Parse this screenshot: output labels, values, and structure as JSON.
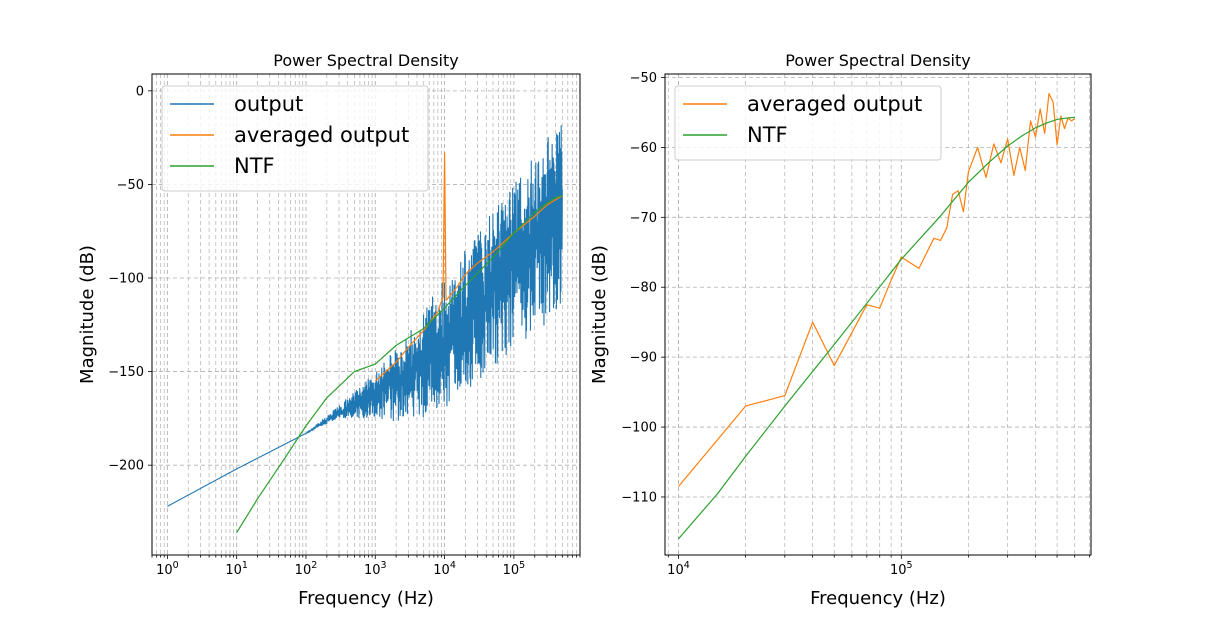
{
  "chart_data": [
    {
      "type": "line",
      "title": "Power Spectral Density",
      "xlabel": "Frequency (Hz)",
      "ylabel": "Magnitude (dB)",
      "xscale": "log",
      "xlim": [
        0.6,
        900000
      ],
      "ylim": [
        -248,
        9
      ],
      "yticks": [
        0,
        -50,
        -100,
        -150,
        -200
      ],
      "xticks": [
        1,
        10,
        100,
        1000,
        10000,
        100000
      ],
      "xtick_labels": [
        {
          "base": "10",
          "exp": "0"
        },
        {
          "base": "10",
          "exp": "1"
        },
        {
          "base": "10",
          "exp": "2"
        },
        {
          "base": "10",
          "exp": "3"
        },
        {
          "base": "10",
          "exp": "4"
        },
        {
          "base": "10",
          "exp": "5"
        }
      ],
      "grid": true,
      "legend_position": "top-left",
      "series": [
        {
          "name": "output",
          "color": "#1f77b4",
          "x": [
            1,
            10,
            100,
            300,
            1000,
            3000,
            10000,
            30000,
            100000,
            300000,
            500000
          ],
          "y": [
            -222,
            -202,
            -183,
            -172,
            -162,
            -150,
            -133,
            -115,
            -90,
            -70,
            -60
          ],
          "y_low": [
            -222,
            -202,
            -183,
            -175,
            -175,
            -178,
            -170,
            -155,
            -138,
            -125,
            -120
          ],
          "y_high": [
            -222,
            -202,
            -183,
            -168,
            -150,
            -130,
            -100,
            -75,
            -50,
            -25,
            -17
          ]
        },
        {
          "name": "averaged output",
          "color": "#ff7f0e",
          "x": [
            1000,
            2000,
            3000,
            5000,
            8000,
            9500,
            10000,
            10500,
            15000,
            20000,
            30000,
            50000,
            100000,
            200000,
            300000,
            500000
          ],
          "y": [
            -155,
            -145,
            -137,
            -128,
            -118,
            -110,
            -33,
            -112,
            -105,
            -98,
            -92,
            -86,
            -76,
            -67,
            -61,
            -56
          ]
        },
        {
          "name": "NTF",
          "color": "#2ca02c",
          "x": [
            10,
            20,
            50,
            100,
            200,
            500,
            1000,
            2000,
            5000,
            10000,
            20000,
            50000,
            100000,
            200000,
            300000,
            400000,
            500000
          ],
          "y": [
            -236,
            -218,
            -196,
            -179,
            -164,
            -150,
            -146,
            -136,
            -127,
            -116,
            -104,
            -89,
            -76,
            -65,
            -60,
            -57,
            -56
          ]
        }
      ]
    },
    {
      "type": "line",
      "title": "Power Spectral Density",
      "xlabel": "Frequency (Hz)",
      "ylabel": "Magnitude (dB)",
      "xscale": "log",
      "xlim": [
        8700,
        710000
      ],
      "ylim": [
        -118.3,
        -49.5
      ],
      "yticks": [
        -50,
        -60,
        -70,
        -80,
        -90,
        -100,
        -110
      ],
      "xticks": [
        10000,
        100000
      ],
      "xtick_labels": [
        {
          "base": "10",
          "exp": "4"
        },
        {
          "base": "10",
          "exp": "5"
        }
      ],
      "grid": true,
      "legend_position": "top-left",
      "series": [
        {
          "name": "averaged output",
          "color": "#ff7f0e",
          "x": [
            10000,
            20000,
            30000,
            40000,
            50000,
            60000,
            70000,
            80000,
            90000,
            100000,
            120000,
            140000,
            150000,
            160000,
            170000,
            180000,
            190000,
            200000,
            220000,
            240000,
            260000,
            280000,
            300000,
            320000,
            340000,
            360000,
            380000,
            400000,
            420000,
            440000,
            460000,
            480000,
            500000,
            520000,
            540000,
            560000,
            580000,
            600000
          ],
          "y": [
            -108.5,
            -97,
            -95.5,
            -85,
            -91.2,
            -86.5,
            -82.5,
            -83,
            -79,
            -75.7,
            -77.3,
            -73,
            -73.3,
            -71.5,
            -66.7,
            -66.2,
            -69.2,
            -63.5,
            -60,
            -64.3,
            -59.5,
            -62.2,
            -58.8,
            -64,
            -60,
            -63.3,
            -56.2,
            -58.5,
            -54.5,
            -58,
            -52.3,
            -53.5,
            -59.6,
            -55.5,
            -57.3,
            -55.8,
            -56.2,
            -55.9
          ]
        },
        {
          "name": "NTF",
          "color": "#2ca02c",
          "x": [
            10000,
            15000,
            20000,
            30000,
            50000,
            70000,
            100000,
            150000,
            200000,
            250000,
            300000,
            350000,
            400000,
            450000,
            500000,
            550000,
            600000
          ],
          "y": [
            -116,
            -109.5,
            -104.2,
            -97,
            -88.2,
            -82.3,
            -76,
            -69.8,
            -65,
            -62,
            -59.8,
            -58.3,
            -57.2,
            -56.5,
            -56,
            -55.8,
            -55.7
          ]
        }
      ]
    }
  ]
}
